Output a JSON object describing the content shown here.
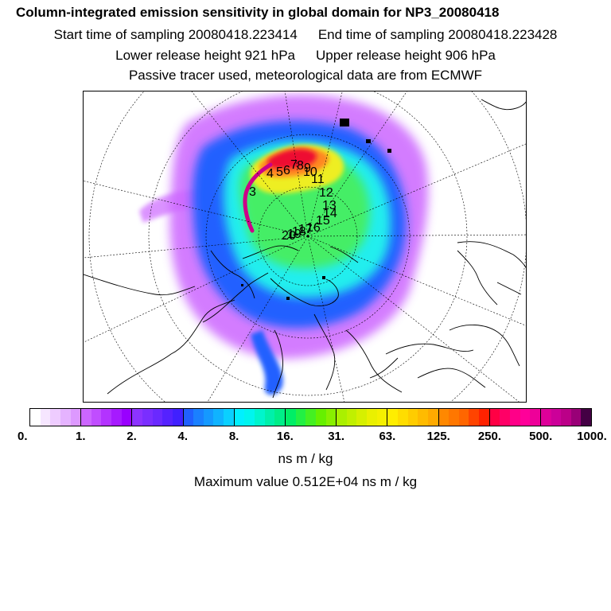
{
  "header": {
    "title": "Column-integrated emission sensitivity in global domain for NP3_20080418",
    "start_time": "Start time of sampling 20080418.223414",
    "end_time": "End time of sampling 20080418.223428",
    "lower_height": "Lower release height  921 hPa",
    "upper_height": "Upper release height  906 hPa",
    "tracer_note": "Passive tracer used, meteorological data are from ECMWF"
  },
  "map": {
    "projection": "north-polar-stereographic",
    "trajectory_labels": [
      "3",
      "4",
      "5",
      "6",
      "7",
      "8",
      "9",
      "10",
      "11",
      "12",
      "13",
      "14",
      "15",
      "16",
      "17",
      "18",
      "19",
      "20"
    ],
    "colors": {
      "low": "#cc66ff",
      "blue": "#2060ff",
      "cyan": "#22eeee",
      "green": "#44ee66",
      "yellow": "#eeee22",
      "orange": "#ff8822",
      "red": "#ee1133",
      "magenta": "#cc0088"
    }
  },
  "colorbar": {
    "tick_labels": [
      "0.",
      "1.",
      "2.",
      "4.",
      "8.",
      "16.",
      "31.",
      "63.",
      "125.",
      "250.",
      "500.",
      "1000."
    ],
    "segments": [
      [
        "#ffffff",
        "#f6e6ff",
        "#eeccff",
        "#e5b3ff",
        "#dd99ff"
      ],
      [
        "#cc66ff",
        "#c04dff",
        "#b333ff",
        "#a61aff",
        "#9900ff"
      ],
      [
        "#8c33ff",
        "#7a2eff",
        "#6a29ff",
        "#5522ff",
        "#4020ff"
      ],
      [
        "#2060ff",
        "#1a80ff",
        "#1599ff",
        "#10b3ff",
        "#0ad0ff"
      ],
      [
        "#00f0ff",
        "#00f5ee",
        "#00f5cc",
        "#00f0aa",
        "#00ee88"
      ],
      [
        "#00ee66",
        "#22f044",
        "#44f022",
        "#66f000",
        "#88f000"
      ],
      [
        "#aaf000",
        "#c0f000",
        "#d6f000",
        "#eaf000",
        "#f5f000"
      ],
      [
        "#ffee00",
        "#ffdd00",
        "#ffcc00",
        "#ffbb00",
        "#ffaa00"
      ],
      [
        "#ff8800",
        "#ff7700",
        "#ff6600",
        "#ff4400",
        "#ff2200"
      ],
      [
        "#ff0044",
        "#ff0066",
        "#ff0088",
        "#ff0099",
        "#ee0099"
      ],
      [
        "#dd0099",
        "#cc0099",
        "#bb0088",
        "#990077",
        "#440044"
      ]
    ]
  },
  "units": "ns m / kg",
  "max_value": "Maximum value  0.512E+04 ns m / kg"
}
